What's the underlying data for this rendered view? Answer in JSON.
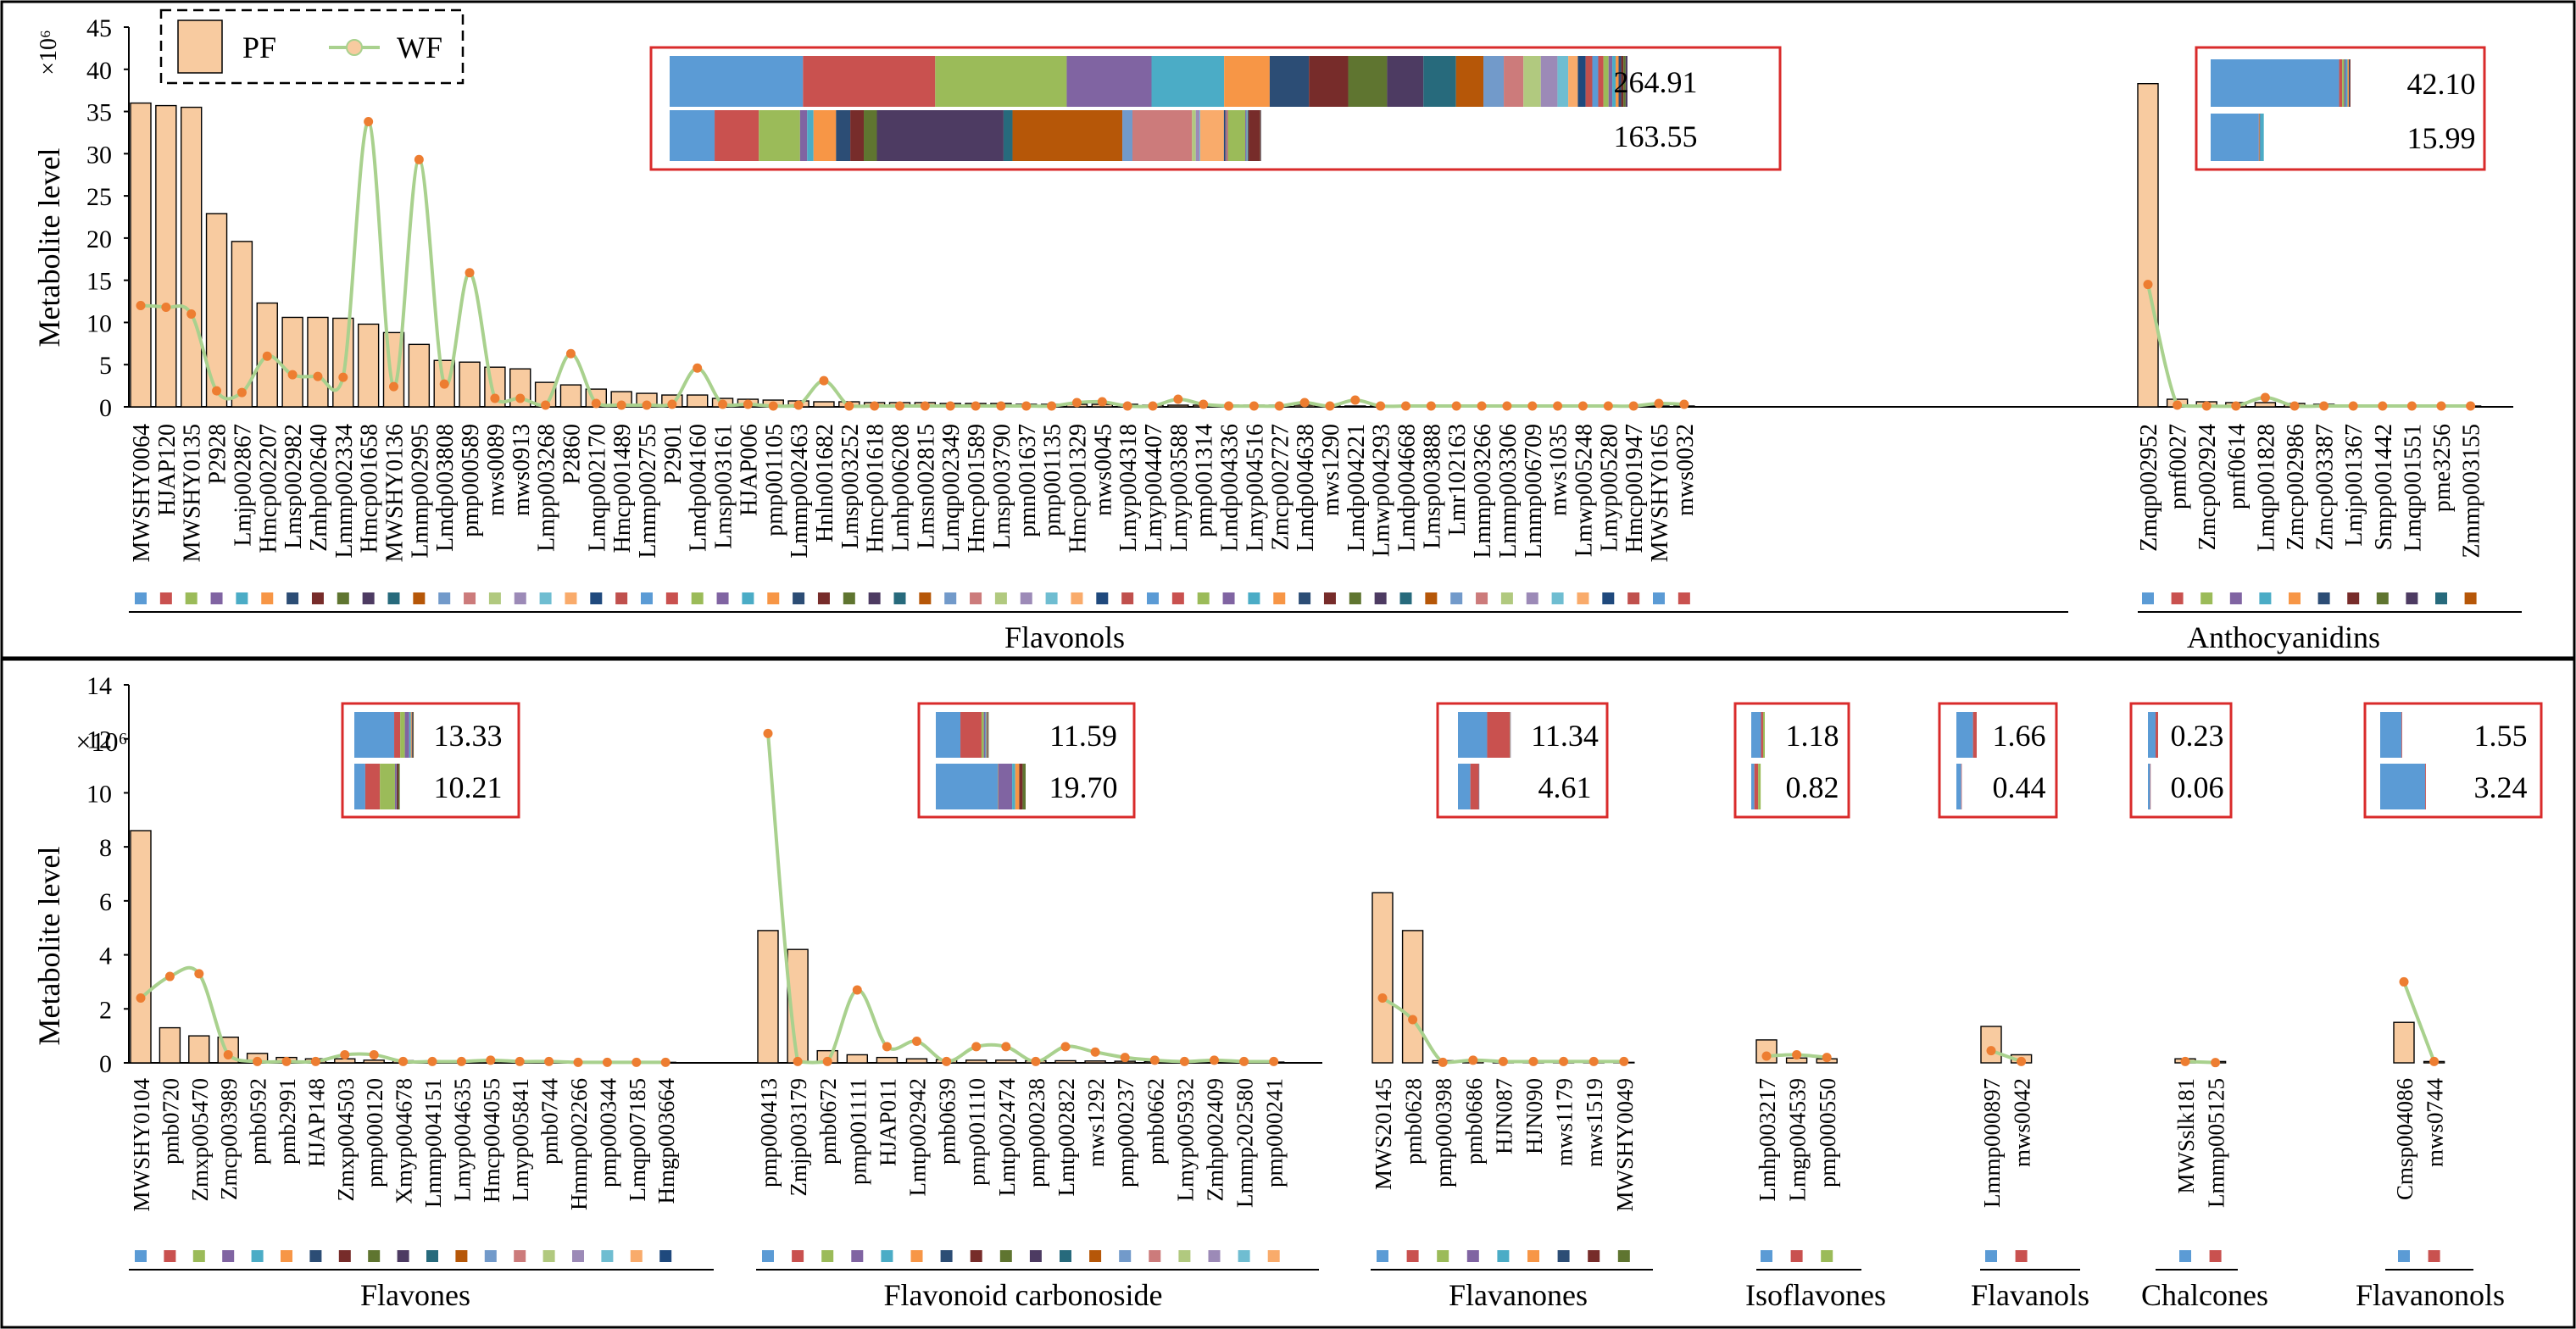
{
  "y_axis_label": "Metabolite level",
  "y_axis_multiplier": "×10⁶",
  "legend": {
    "items": [
      {
        "label": "PF",
        "color": "#F8CBA0"
      },
      {
        "label": "WF",
        "color": "#A9D18E"
      }
    ]
  },
  "colors": {
    "bar_fill": "#F8CBA0",
    "wf_line": "#A9D18E",
    "wf_point": "#ED7D31",
    "inset_border": "#D92B2B"
  },
  "palette": [
    "#5B9BD5",
    "#C9514F",
    "#9BBB59",
    "#8064A2",
    "#4BACC6",
    "#F79646",
    "#2C4D75",
    "#772C2A",
    "#5F7530",
    "#4D3B62",
    "#276A7C",
    "#B65708",
    "#729ACA",
    "#CC7B7B",
    "#B1C97F",
    "#9C8AB7",
    "#6FBDD1",
    "#F9AB6B",
    "#1F497D",
    "#C0504D"
  ],
  "chart_data": [
    {
      "type": "bar",
      "panel": "top",
      "ylim": [
        0,
        45
      ],
      "yticks": [
        0,
        5,
        10,
        15,
        20,
        25,
        30,
        35,
        40,
        45
      ],
      "groups": [
        {
          "name": "Flavonols",
          "categories": [
            "MWSHY0064",
            "HJAP120",
            "MWSHY0135",
            "P2928",
            "Lmjp002867",
            "Hmcp002207",
            "Lmsp002982",
            "Zmhp002640",
            "Lmmp002334",
            "Hmcp001658",
            "MWSHY0136",
            "Lmmp002995",
            "Lmdp003808",
            "pmp000589",
            "mws0089",
            "mws0913",
            "Lmpp003268",
            "P2860",
            "Lmqp002170",
            "Hmcp001489",
            "Lmmp002755",
            "P2901",
            "Lmdp004160",
            "Lmsp003161",
            "HJAP006",
            "pmp001105",
            "Lmmp002463",
            "Hnln001682",
            "Lmsp003252",
            "Hmcp001618",
            "Lmhp006208",
            "Lmsn002815",
            "Lmqp002349",
            "Hmcp001589",
            "Lmsp003790",
            "pmn001637",
            "pmp001135",
            "Hmcp001329",
            "mws0045",
            "Lmyp004318",
            "Lmyp004407",
            "Lmyp003588",
            "pmp001314",
            "Lmdp004336",
            "Lmyp004516",
            "Zmcp002727",
            "Lmdp004638",
            "mws1290",
            "Lmdp004221",
            "Lmwp004293",
            "Lmdp004668",
            "Lmsp003888",
            "Lmr102163",
            "Lmmp003266",
            "Lmmp003306",
            "Lmmp006709",
            "mws1035",
            "Lmwp005248",
            "Lmyp005280",
            "Hmcp001947",
            "MWSHY0165",
            "mws0032"
          ],
          "series": [
            {
              "name": "PF",
              "values": [
                36,
                35.7,
                35.5,
                22.9,
                19.6,
                12.3,
                10.6,
                10.6,
                10.5,
                9.8,
                8.8,
                7.4,
                5.5,
                5.3,
                4.7,
                4.5,
                2.9,
                2.6,
                2.1,
                1.8,
                1.6,
                1.4,
                1.4,
                1.0,
                0.9,
                0.8,
                0.7,
                0.6,
                0.6,
                0.5,
                0.5,
                0.5,
                0.4,
                0.4,
                0.4,
                0.3,
                0.3,
                0.3,
                0.3,
                0.3,
                0.2,
                0.2,
                0.2,
                0.2,
                0.2,
                0.2,
                0.2,
                0.1,
                0.1,
                0.1,
                0.1,
                0.1,
                0.1,
                0.1,
                0.1,
                0.1,
                0.1,
                0.1,
                0.1,
                0.1,
                0.1,
                0.1
              ]
            },
            {
              "name": "WF",
              "values": [
                12,
                11.8,
                11,
                1.9,
                1.7,
                6,
                3.8,
                3.6,
                3.5,
                33.8,
                2.4,
                29.3,
                2.7,
                15.9,
                1,
                1,
                0.2,
                6.3,
                0.4,
                0.2,
                0.2,
                0.3,
                4.6,
                0.3,
                0.3,
                0.1,
                0.2,
                3.1,
                0.1,
                0.1,
                0.1,
                0.1,
                0.1,
                0.1,
                0.1,
                0.1,
                0.1,
                0.5,
                0.6,
                0.1,
                0.1,
                0.9,
                0.3,
                0.1,
                0.1,
                0.1,
                0.5,
                0.1,
                0.8,
                0.1,
                0.1,
                0.1,
                0.1,
                0.1,
                0.1,
                0.1,
                0.1,
                0.1,
                0.1,
                0.1,
                0.4,
                0.3
              ]
            }
          ],
          "inset": {
            "values": [
              "264.91",
              "163.55"
            ],
            "pf_total": 264.91,
            "wf_total": 163.55,
            "pf_segments": [
              36,
              35.7,
              35.5,
              22.9,
              19.6,
              12.3,
              10.6,
              10.6,
              10.5,
              9.8,
              8.8,
              7.4,
              5.5,
              5.3,
              4.7,
              4.5,
              2.9,
              2.6,
              2.1,
              1.8,
              1.6,
              1.4,
              1.4,
              1.0,
              0.9,
              0.8,
              0.7,
              0.6,
              0.6,
              0.5
            ],
            "wf_segments": [
              12,
              11.8,
              11,
              1.9,
              1.7,
              6,
              3.8,
              3.6,
              3.5,
              33.8,
              2.4,
              29.3,
              2.7,
              15.9,
              1,
              1,
              0.2,
              6.3,
              0.4,
              0.2,
              0.2,
              0.3,
              4.6,
              0.3,
              0.3,
              0.1,
              0.2,
              3.1,
              0.1,
              0.1
            ]
          }
        },
        {
          "name": "Anthocyanidins",
          "categories": [
            "Zmqp002952",
            "pmf0027",
            "Zmcp002924",
            "pmf0614",
            "Lmqp001828",
            "Zmcp002986",
            "Zmcp003387",
            "Lmjp001367",
            "Smpp001442",
            "Lmqp001551",
            "pme3256",
            "Zmmp003155"
          ],
          "series": [
            {
              "name": "PF",
              "values": [
                38.3,
                0.9,
                0.6,
                0.5,
                0.5,
                0.4,
                0.3,
                0.2,
                0.2,
                0.1,
                0.1,
                0.1
              ]
            },
            {
              "name": "WF",
              "values": [
                14.5,
                0.2,
                0.1,
                0.1,
                1.1,
                0.1,
                0.1,
                0.1,
                0.1,
                0.1,
                0.1,
                0.1
              ]
            }
          ],
          "inset": {
            "values": [
              "42.10",
              "15.99"
            ],
            "pf_total": 42.1,
            "wf_total": 15.99,
            "pf_segments": [
              38.3,
              0.9,
              0.6,
              0.5,
              0.5,
              0.4,
              0.3,
              0.2
            ],
            "wf_segments": [
              14.5,
              0.2,
              0.1,
              0.1,
              1.1
            ]
          }
        }
      ]
    },
    {
      "type": "bar",
      "panel": "bottom",
      "ylim": [
        0,
        14
      ],
      "yticks": [
        0,
        2,
        4,
        6,
        8,
        10,
        12,
        14
      ],
      "groups": [
        {
          "name": "Flavones",
          "categories": [
            "MWSHY0104",
            "pmb0720",
            "Zmxp005470",
            "Zmcp003989",
            "pmb0592",
            "pmb2991",
            "HJAP148",
            "Zmxp004503",
            "pmp000120",
            "Xmyp004678",
            "Lmmp004151",
            "Lmyp004635",
            "Hmcp004055",
            "Lmyp005841",
            "pmb0744",
            "Hmmp002266",
            "pmp000344",
            "Lmqp007185",
            "Hmgp003664"
          ],
          "series": [
            {
              "name": "PF",
              "values": [
                8.6,
                1.3,
                1.0,
                0.95,
                0.35,
                0.2,
                0.15,
                0.15,
                0.1,
                0.08,
                0.07,
                0.06,
                0.05,
                0.05,
                0.04,
                0.04,
                0.03,
                0.03,
                0.02
              ]
            },
            {
              "name": "WF",
              "values": [
                2.4,
                3.2,
                3.3,
                0.3,
                0.05,
                0.05,
                0.05,
                0.3,
                0.3,
                0.05,
                0.05,
                0.05,
                0.1,
                0.05,
                0.05,
                0.02,
                0.02,
                0.02,
                0.02
              ]
            }
          ],
          "inset": {
            "values": [
              "13.33",
              "10.21"
            ],
            "pf_total": 13.33,
            "wf_total": 10.21,
            "pf_segments": [
              8.6,
              1.3,
              1.0,
              0.95,
              0.35,
              0.2,
              0.15,
              0.15,
              0.1
            ],
            "wf_segments": [
              2.4,
              3.2,
              3.3,
              0.3,
              0.05,
              0.05,
              0.05,
              0.3,
              0.3
            ]
          }
        },
        {
          "name": "Flavonoid carbonoside",
          "categories": [
            "pmp000413",
            "Zmjp003179",
            "pmb0672",
            "pmp001111",
            "HJAP011",
            "Lmtp002942",
            "pmb0639",
            "pmp001110",
            "Lmtp002474",
            "pmp000238",
            "Lmtp002822",
            "mws1292",
            "pmp000237",
            "pmb0662",
            "Lmyp005932",
            "Zmhp002409",
            "Lmmp202580",
            "pmp000241"
          ],
          "series": [
            {
              "name": "PF",
              "values": [
                4.9,
                4.2,
                0.45,
                0.3,
                0.2,
                0.15,
                0.12,
                0.1,
                0.1,
                0.08,
                0.08,
                0.07,
                0.06,
                0.05,
                0.05,
                0.04,
                0.03,
                0.03
              ]
            },
            {
              "name": "WF",
              "values": [
                12.2,
                0.05,
                0.05,
                2.7,
                0.6,
                0.8,
                0.05,
                0.6,
                0.6,
                0.05,
                0.6,
                0.4,
                0.2,
                0.1,
                0.05,
                0.1,
                0.05,
                0.05
              ]
            }
          ],
          "inset": {
            "values": [
              "11.59",
              "19.70"
            ],
            "pf_total": 11.59,
            "wf_total": 19.7,
            "pf_segments": [
              4.9,
              4.2,
              0.45,
              0.3,
              0.2,
              0.15,
              0.12,
              0.1,
              0.1
            ],
            "wf_segments": [
              12.2,
              0.05,
              0.05,
              2.7,
              0.6,
              0.8,
              0.05,
              0.6,
              0.6
            ]
          }
        },
        {
          "name": "Flavanones",
          "categories": [
            "MWS20145",
            "pmb0628",
            "pmp000398",
            "pmb0686",
            "HJN087",
            "HJN090",
            "mws1179",
            "mws1519",
            "MWSHY0049"
          ],
          "series": [
            {
              "name": "PF",
              "values": [
                6.3,
                4.9,
                0.08,
                0.06,
                0.05,
                0.04,
                0.03,
                0.03,
                0.02
              ]
            },
            {
              "name": "WF",
              "values": [
                2.4,
                1.6,
                0.02,
                0.1,
                0.05,
                0.05,
                0.05,
                0.05,
                0.05
              ]
            }
          ],
          "inset": {
            "values": [
              "11.34",
              "4.61"
            ],
            "pf_total": 11.34,
            "wf_total": 4.61,
            "pf_segments": [
              6.3,
              4.9,
              0.08,
              0.06
            ],
            "wf_segments": [
              2.4,
              1.6,
              0.02,
              0.1
            ]
          }
        },
        {
          "name": "Isoflavones",
          "categories": [
            "Lmhp003217",
            "Lmgp004539",
            "pmp000550"
          ],
          "series": [
            {
              "name": "PF",
              "values": [
                0.85,
                0.18,
                0.15
              ]
            },
            {
              "name": "WF",
              "values": [
                0.25,
                0.3,
                0.2
              ]
            }
          ],
          "inset": {
            "values": [
              "1.18",
              "0.82"
            ],
            "pf_total": 1.18,
            "wf_total": 0.82,
            "pf_segments": [
              0.85,
              0.18,
              0.15
            ],
            "wf_segments": [
              0.25,
              0.3,
              0.2
            ]
          }
        },
        {
          "name": "Flavanols",
          "categories": [
            "Lmmp000897",
            "mws0042"
          ],
          "series": [
            {
              "name": "PF",
              "values": [
                1.35,
                0.3
              ]
            },
            {
              "name": "WF",
              "values": [
                0.45,
                0.05
              ]
            }
          ],
          "inset": {
            "values": [
              "1.66",
              "0.44"
            ],
            "pf_total": 1.66,
            "wf_total": 0.44,
            "pf_segments": [
              1.35,
              0.3
            ],
            "wf_segments": [
              0.45,
              0.05
            ]
          }
        },
        {
          "name": "Chalcones",
          "categories": [
            "MWSslk181",
            "Lmmp005125"
          ],
          "series": [
            {
              "name": "PF",
              "values": [
                0.15,
                0.05
              ]
            },
            {
              "name": "WF",
              "values": [
                0.05,
                0.01
              ]
            }
          ],
          "inset": {
            "values": [
              "0.23",
              "0.06"
            ],
            "pf_total": 0.23,
            "wf_total": 0.06,
            "pf_segments": [
              0.15,
              0.05
            ],
            "wf_segments": [
              0.05,
              0.01
            ]
          }
        },
        {
          "name": "Flavanonols",
          "categories": [
            "Cmsp004086",
            "mws0744"
          ],
          "series": [
            {
              "name": "PF",
              "values": [
                1.5,
                0.05
              ]
            },
            {
              "name": "WF",
              "values": [
                3.0,
                0.05
              ]
            }
          ],
          "inset": {
            "values": [
              "1.55",
              "3.24"
            ],
            "pf_total": 1.55,
            "wf_total": 3.24,
            "pf_segments": [
              1.5,
              0.05
            ],
            "wf_segments": [
              3.0,
              0.05
            ]
          }
        }
      ]
    }
  ]
}
